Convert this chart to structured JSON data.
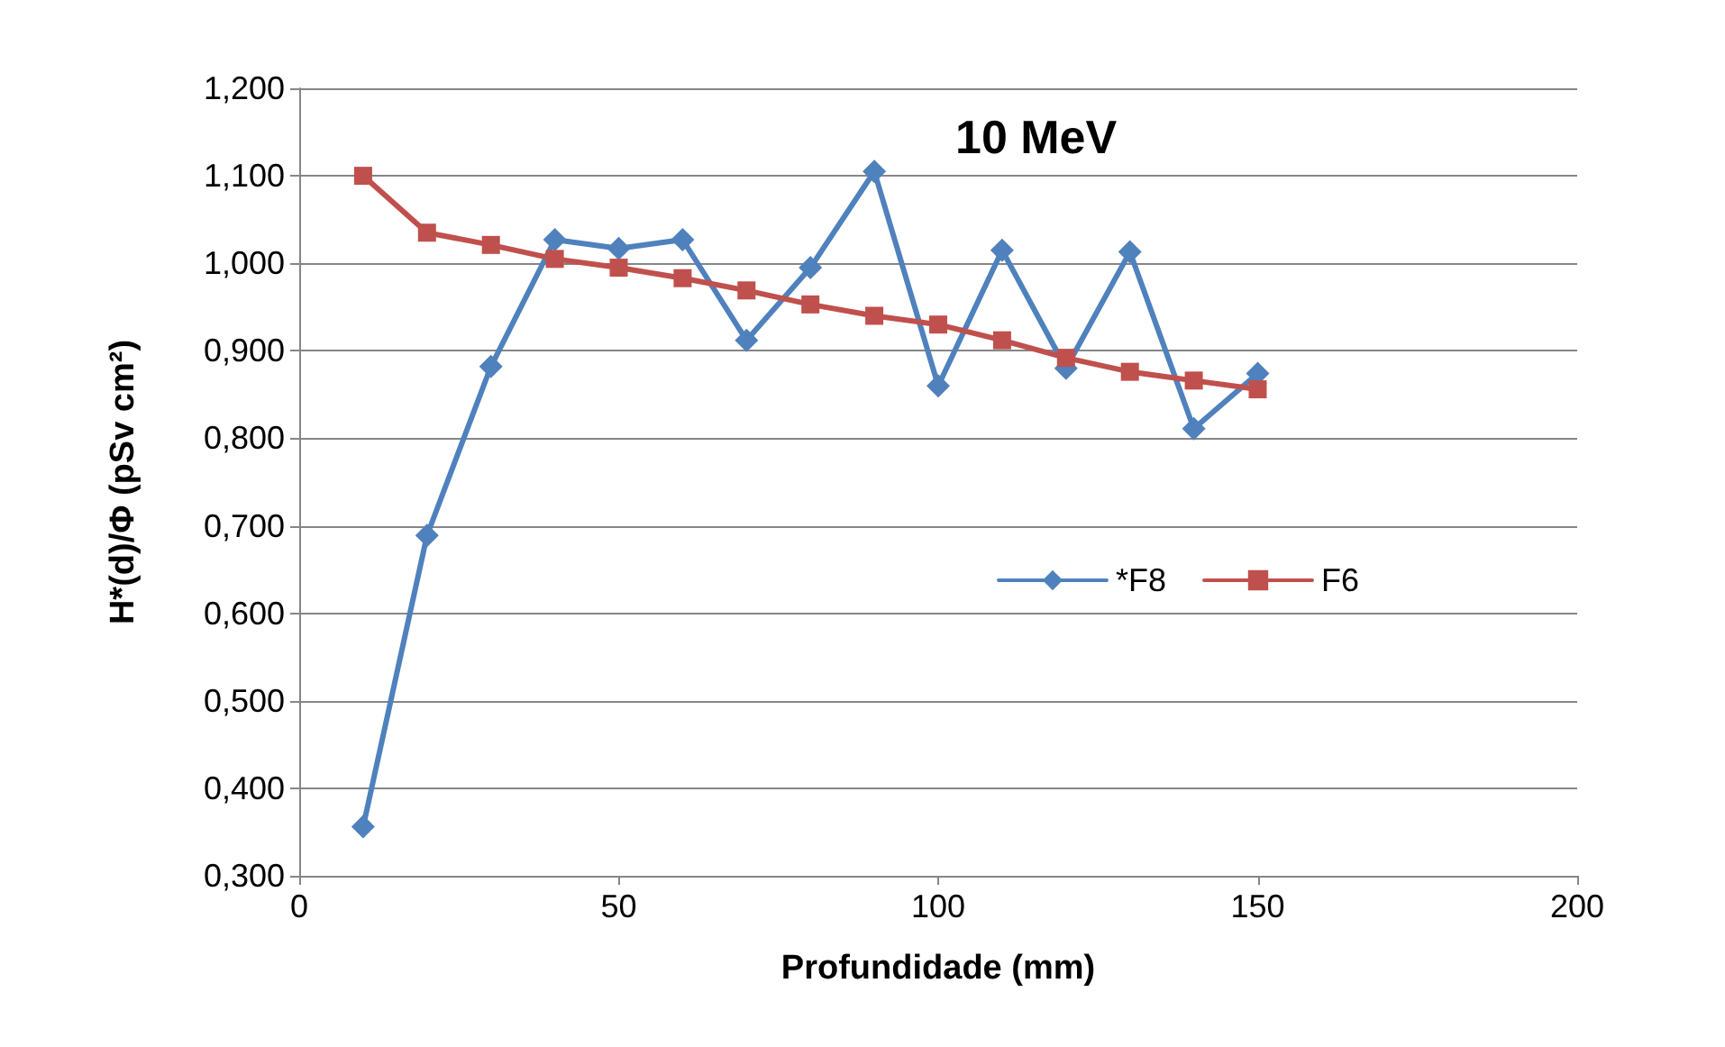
{
  "chart_data": {
    "type": "line",
    "title": "10 MeV",
    "xlabel": "Profundidade (mm)",
    "ylabel": "H*(d)/Φ (pSv cm²)",
    "x": [
      10,
      20,
      30,
      40,
      50,
      60,
      70,
      80,
      90,
      100,
      110,
      120,
      130,
      140,
      150
    ],
    "series": [
      {
        "name": "*F8",
        "color": "#4f81bd",
        "marker": "diamond",
        "values": [
          0.356,
          0.689,
          0.882,
          1.027,
          1.017,
          1.027,
          0.912,
          0.995,
          1.105,
          0.86,
          1.015,
          0.88,
          1.013,
          0.811,
          0.874
        ]
      },
      {
        "name": "F6",
        "color": "#c0504d",
        "marker": "square",
        "values": [
          1.1,
          1.035,
          1.021,
          1.005,
          0.995,
          0.983,
          0.969,
          0.953,
          0.94,
          0.93,
          0.912,
          0.892,
          0.876,
          0.866,
          0.856
        ]
      }
    ],
    "xlim": [
      0,
      200
    ],
    "xticks": [
      0,
      50,
      100,
      150,
      200
    ],
    "ylim": [
      0.3,
      1.2
    ],
    "yticks": [
      {
        "value": 0.3,
        "label": "0,300"
      },
      {
        "value": 0.4,
        "label": "0,400"
      },
      {
        "value": 0.5,
        "label": "0,500"
      },
      {
        "value": 0.6,
        "label": "0,600"
      },
      {
        "value": 0.7,
        "label": "0,700"
      },
      {
        "value": 0.8,
        "label": "0,800"
      },
      {
        "value": 0.9,
        "label": "0,900"
      },
      {
        "value": 1.0,
        "label": "1,000"
      },
      {
        "value": 1.1,
        "label": "1,100"
      },
      {
        "value": 1.2,
        "label": "1,200"
      }
    ],
    "grid": "y",
    "legend": "right",
    "line_style": "solid"
  }
}
